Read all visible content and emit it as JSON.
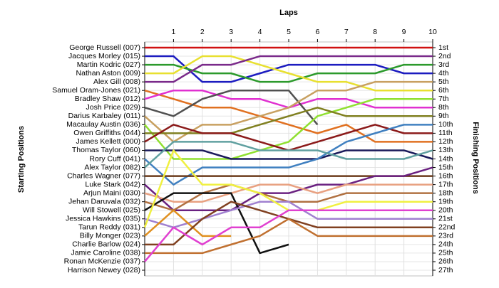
{
  "chart_data": {
    "type": "lap-chart",
    "title": "Laps",
    "y_label_left": "Starting Positions",
    "y_label_right": "Finishing Positions",
    "x": [
      0,
      1,
      2,
      3,
      4,
      5,
      6,
      7,
      8,
      9,
      10
    ],
    "xlim": [
      0,
      10
    ],
    "xticks": [
      1,
      2,
      3,
      4,
      5,
      6,
      7,
      8,
      9,
      10
    ],
    "ylim": [
      1,
      27
    ],
    "y_inverted": true,
    "grid": true,
    "yticks": [
      {
        "value": 1,
        "label": "1st"
      },
      {
        "value": 2,
        "label": "2nd"
      },
      {
        "value": 3,
        "label": "3rd"
      },
      {
        "value": 4,
        "label": "4th"
      },
      {
        "value": 5,
        "label": "5th"
      },
      {
        "value": 6,
        "label": "6th"
      },
      {
        "value": 7,
        "label": "7th"
      },
      {
        "value": 8,
        "label": "8th"
      },
      {
        "value": 9,
        "label": "9th"
      },
      {
        "value": 10,
        "label": "10th"
      },
      {
        "value": 11,
        "label": "11th"
      },
      {
        "value": 12,
        "label": "12th"
      },
      {
        "value": 13,
        "label": "13th"
      },
      {
        "value": 14,
        "label": "14th"
      },
      {
        "value": 15,
        "label": "15th"
      },
      {
        "value": 16,
        "label": "16th"
      },
      {
        "value": 17,
        "label": "17th"
      },
      {
        "value": 18,
        "label": "18th"
      },
      {
        "value": 19,
        "label": "19th"
      },
      {
        "value": 20,
        "label": "20th"
      },
      {
        "value": 21,
        "label": "21st"
      },
      {
        "value": 22,
        "label": "22nd"
      },
      {
        "value": 23,
        "label": "23rd"
      },
      {
        "value": 24,
        "label": "24th"
      },
      {
        "value": 25,
        "label": "25th"
      },
      {
        "value": 26,
        "label": "26th"
      },
      {
        "value": 27,
        "label": "27th"
      }
    ],
    "series": [
      {
        "name": "George Russell (007)",
        "color": "#d01010",
        "values": [
          1,
          1,
          1,
          1,
          1,
          1,
          1,
          1,
          1,
          1,
          1
        ]
      },
      {
        "name": "Jacques Morley (015)",
        "color": "#1c1cc0",
        "values": [
          2,
          2,
          5,
          5,
          4,
          3,
          3,
          3,
          3,
          4,
          4
        ]
      },
      {
        "name": "Martin Kodric (027)",
        "color": "#2c9a2c",
        "values": [
          3,
          3,
          4,
          4,
          5,
          5,
          4,
          4,
          4,
          3,
          3
        ]
      },
      {
        "name": "Nathan Aston (009)",
        "color": "#e8e030",
        "values": [
          4,
          4,
          2,
          2,
          3,
          4,
          5,
          5,
          6,
          6,
          6
        ]
      },
      {
        "name": "Alex Gill (008)",
        "color": "#7a2a8a",
        "values": [
          5,
          5,
          3,
          3,
          2,
          2,
          2,
          2,
          2,
          2,
          2
        ]
      },
      {
        "name": "Samuel Oram-Jones (021)",
        "color": "#e07020",
        "values": [
          6,
          7,
          8,
          8,
          9,
          10,
          11,
          10,
          12,
          12,
          12
        ]
      },
      {
        "name": "Bradley Shaw (012)",
        "color": "#e030d0",
        "values": [
          7,
          6,
          6,
          7,
          7,
          8,
          7,
          7,
          8,
          8,
          8
        ]
      },
      {
        "name": "Josh Price (029)",
        "color": "#505050",
        "values": [
          8,
          9,
          7,
          6,
          6,
          6,
          10,
          null,
          null,
          null,
          null
        ]
      },
      {
        "name": "Darius Karbaley (011)",
        "color": "#c8a060",
        "values": [
          9,
          12,
          10,
          10,
          9,
          8,
          6,
          6,
          5,
          5,
          5
        ]
      },
      {
        "name": "Macaulay Austin (036)",
        "color": "#90e030",
        "values": [
          10,
          14,
          14,
          14,
          13,
          12,
          9,
          8,
          7,
          7,
          7
        ]
      },
      {
        "name": "Owen Griffiths (044)",
        "color": "#808020",
        "values": [
          11,
          11,
          11,
          11,
          10,
          9,
          8,
          9,
          9,
          9,
          9
        ]
      },
      {
        "name": "James Kellett (000)",
        "color": "#8b1a1a",
        "values": [
          12,
          10,
          11,
          11,
          12,
          13,
          12,
          11,
          10,
          11,
          11
        ]
      },
      {
        "name": "Thomas Taylor (060)",
        "color": "#1a1a5a",
        "values": [
          13,
          13,
          13,
          14,
          14,
          14,
          14,
          13,
          13,
          13,
          14
        ]
      },
      {
        "name": "Rory Cuff (041)",
        "color": "#4080c0",
        "values": [
          14,
          17,
          15,
          15,
          15,
          15,
          14,
          12,
          11,
          10,
          10
        ]
      },
      {
        "name": "Alex Taylor (082)",
        "color": "#60a0a0",
        "values": [
          15,
          12,
          12,
          12,
          13,
          13,
          13,
          14,
          14,
          14,
          13
        ]
      },
      {
        "name": "Charles Wagner (077)",
        "color": "#6b3a1a",
        "values": [
          16,
          16,
          16,
          16,
          16,
          16,
          16,
          16,
          16,
          16,
          16
        ]
      },
      {
        "name": "Luke Stark (042)",
        "color": "#6a2080",
        "values": [
          17,
          20,
          20,
          20,
          18,
          18,
          17,
          17,
          16,
          16,
          15
        ]
      },
      {
        "name": "Arjun Maini (030)",
        "color": "#e8a080",
        "values": [
          18,
          19,
          19,
          18,
          17,
          17,
          18,
          17,
          17,
          17,
          17
        ]
      },
      {
        "name": "Jehan Daruvala (032)",
        "color": "#b07040",
        "values": [
          19,
          20,
          18,
          17,
          18,
          19,
          19,
          18,
          18,
          18,
          18
        ]
      },
      {
        "name": "Will Stowell (025)",
        "color": "#101010",
        "values": [
          20,
          18,
          18,
          18,
          25,
          24,
          null,
          null,
          null,
          null,
          null
        ]
      },
      {
        "name": "Jessica Hawkins (035)",
        "color": "#a080d0",
        "values": [
          21,
          22,
          21,
          20,
          19,
          19,
          21,
          21,
          21,
          21,
          21
        ]
      },
      {
        "name": "Tarun Reddy (031)",
        "color": "#f0f040",
        "values": [
          22,
          13,
          17,
          17,
          18,
          20,
          20,
          19,
          19,
          19,
          19
        ]
      },
      {
        "name": "Billy Monger (023)",
        "color": "#e09020",
        "values": [
          23,
          20,
          23,
          23,
          null,
          null,
          null,
          null,
          null,
          null,
          null
        ]
      },
      {
        "name": "Charlie Barlow (024)",
        "color": "#804020",
        "values": [
          24,
          24,
          21,
          19,
          20,
          21,
          22,
          22,
          22,
          22,
          22
        ]
      },
      {
        "name": "Jamie Caroline (038)",
        "color": "#c07030",
        "values": [
          25,
          25,
          25,
          24,
          23,
          21,
          23,
          23,
          23,
          23,
          23
        ]
      },
      {
        "name": "Ronan McKenzie (037)",
        "color": "#e040d0",
        "values": [
          26,
          22,
          24,
          22,
          22,
          20,
          20,
          20,
          20,
          20,
          20
        ]
      },
      {
        "name": "Harrison Newey (028)",
        "color": "#909090",
        "values": [
          27,
          null,
          null,
          null,
          null,
          null,
          null,
          null,
          null,
          null,
          null
        ]
      }
    ]
  }
}
